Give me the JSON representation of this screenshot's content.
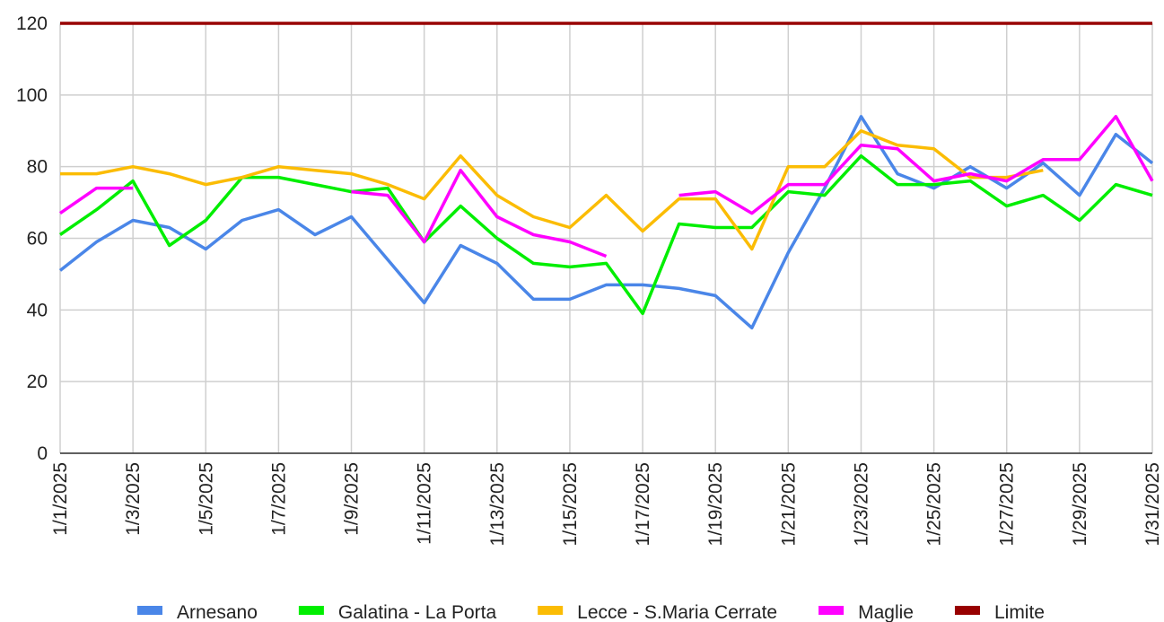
{
  "chart_data": {
    "type": "line",
    "categories": [
      "1/1/2025",
      null,
      "1/3/2025",
      null,
      "1/5/2025",
      null,
      "1/7/2025",
      null,
      "1/9/2025",
      null,
      "1/11/2025",
      null,
      "1/13/2025",
      null,
      "1/15/2025",
      null,
      "1/17/2025",
      null,
      "1/19/2025",
      null,
      "1/21/2025",
      null,
      "1/23/2025",
      null,
      "1/25/2025",
      null,
      "1/27/2025",
      null,
      "1/29/2025",
      null,
      "1/31/2025"
    ],
    "series": [
      {
        "name": "Arnesano",
        "color": "#4a86e8",
        "values": [
          51,
          59,
          65,
          63,
          57,
          65,
          68,
          61,
          66,
          54,
          42,
          58,
          53,
          43,
          43,
          47,
          47,
          46,
          44,
          35,
          56,
          74,
          94,
          78,
          74,
          80,
          74,
          81,
          72,
          89,
          81
        ]
      },
      {
        "name": "Galatina - La Porta",
        "color": "#00ee00",
        "values": [
          61,
          68,
          76,
          58,
          65,
          77,
          77,
          75,
          73,
          74,
          59,
          69,
          60,
          53,
          52,
          53,
          39,
          64,
          63,
          63,
          73,
          72,
          83,
          75,
          75,
          76,
          69,
          72,
          65,
          75,
          72
        ]
      },
      {
        "name": "Lecce - S.Maria Cerrate",
        "color": "#fbbc04",
        "values": [
          78,
          78,
          80,
          78,
          75,
          77,
          80,
          79,
          78,
          75,
          71,
          83,
          72,
          66,
          63,
          72,
          62,
          71,
          71,
          57,
          80,
          80,
          90,
          86,
          85,
          77,
          77,
          79,
          null,
          null,
          null
        ]
      },
      {
        "name": "Maglie",
        "color": "#ff00ff",
        "values": [
          67,
          74,
          74,
          null,
          null,
          null,
          null,
          null,
          73,
          72,
          59,
          79,
          66,
          61,
          59,
          55,
          null,
          72,
          73,
          67,
          75,
          75,
          86,
          85,
          76,
          78,
          76,
          82,
          82,
          94,
          76
        ]
      },
      {
        "name": "Limite",
        "color": "#980000",
        "values": [
          120,
          120,
          120,
          120,
          120,
          120,
          120,
          120,
          120,
          120,
          120,
          120,
          120,
          120,
          120,
          120,
          120,
          120,
          120,
          120,
          120,
          120,
          120,
          120,
          120,
          120,
          120,
          120,
          120,
          120,
          120
        ]
      }
    ],
    "ylim": [
      0,
      120
    ],
    "yticks": [
      0,
      20,
      40,
      60,
      80,
      100,
      120
    ],
    "grid": true,
    "legend": "bottom"
  }
}
